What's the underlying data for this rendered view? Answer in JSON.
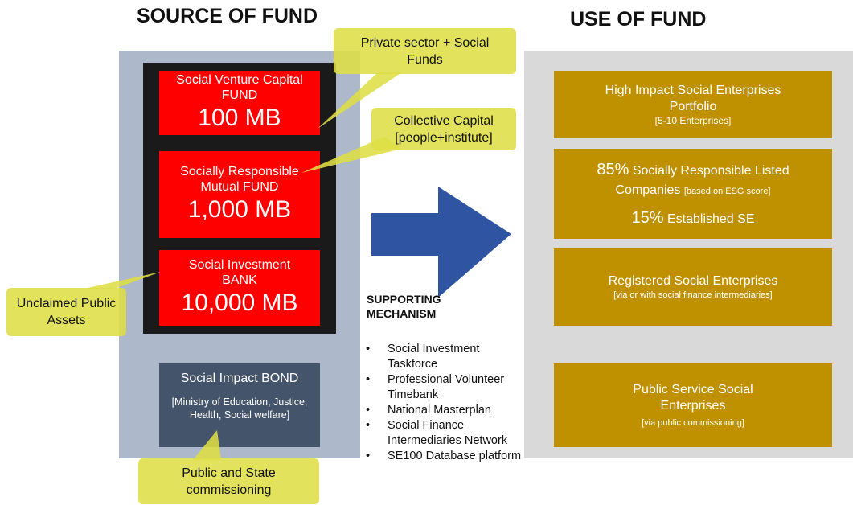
{
  "header": {
    "source_title": "SOURCE OF FUND",
    "use_title": "USE OF FUND"
  },
  "sources": [
    {
      "name": "Social Venture Capital FUND",
      "amount": "100 MB"
    },
    {
      "name": "Socially Responsible Mutual FUND",
      "amount": "1,000 MB"
    },
    {
      "name": "Social Investment BANK",
      "amount": "10,000 MB"
    }
  ],
  "bond": {
    "title": "Social Impact BOND",
    "detail": "[Ministry of Education, Justice, Health, Social welfare]"
  },
  "callouts": [
    "Private sector + Social Funds",
    "Collective Capital [people+institute]",
    "Unclaimed Public Assets",
    "Public and State commissioning"
  ],
  "mechanism": {
    "title": "SUPPORTING MECHANISM",
    "items": [
      "Social Investment Taskforce",
      "Professional Volunteer Timebank",
      "National Masterplan",
      "Social Finance Intermediaries Network",
      "SE100 Database platform"
    ]
  },
  "uses": [
    {
      "title": "High Impact Social Enterprises Portfolio",
      "note": "[5-10 Enterprises]"
    },
    {
      "share1": "85%",
      "text1": "Socially Responsible Listed Companies",
      "note1": "[based on ESG score]",
      "share2": "15%",
      "text2": "Established SE"
    },
    {
      "title": "Registered Social Enterprises",
      "note": "[via or with social finance intermediaries]"
    },
    {
      "title": "Public Service Social Enterprises",
      "note": "[via public commissioning]"
    }
  ]
}
